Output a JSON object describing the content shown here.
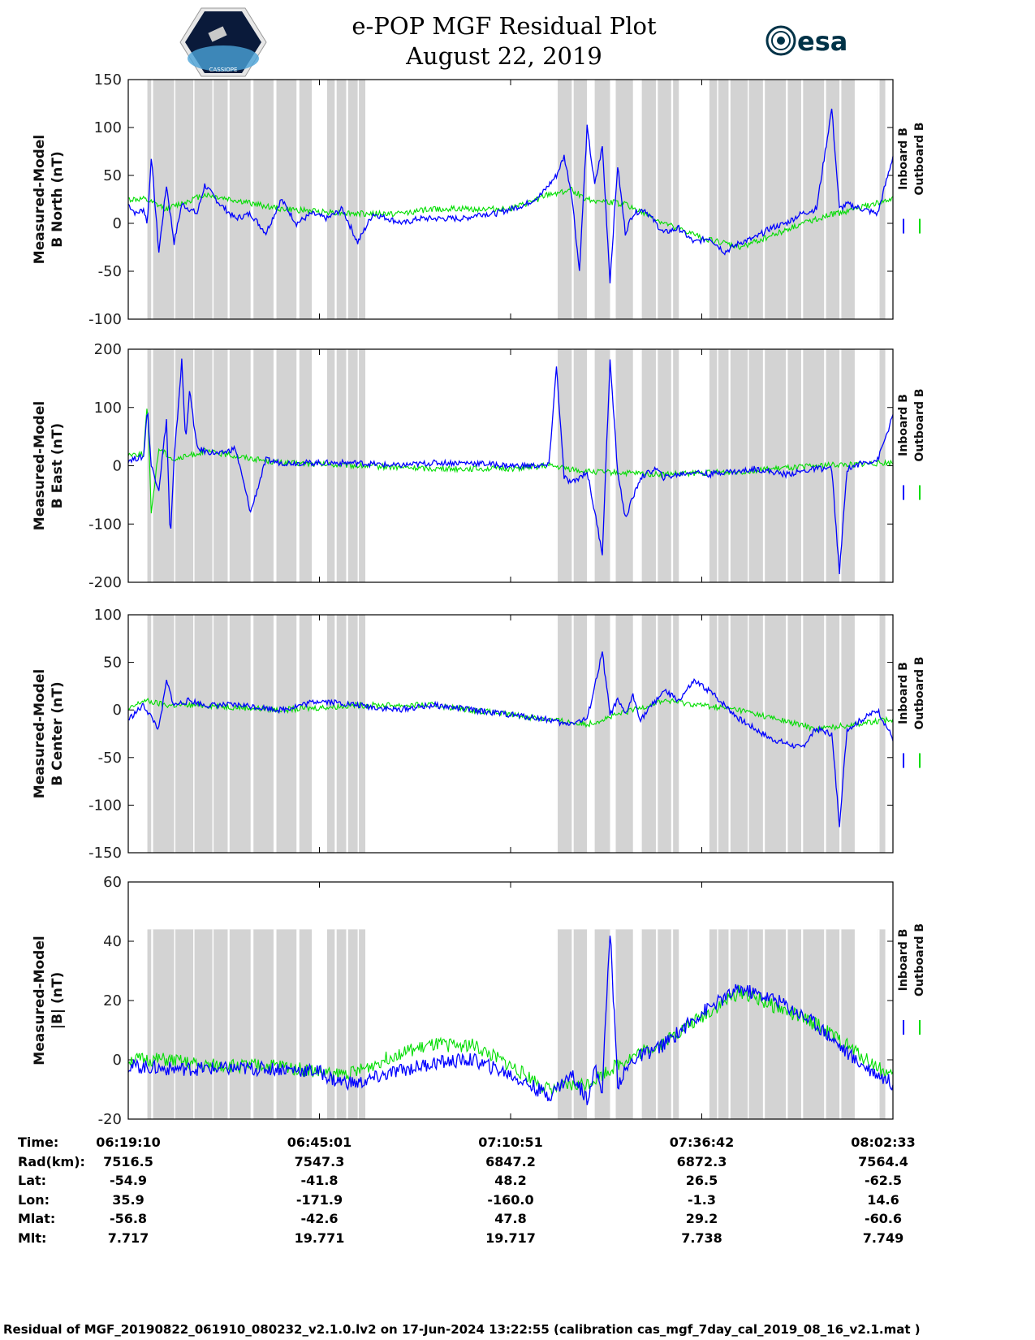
{
  "title_line1": "e-POP MGF Residual Plot",
  "title_line2": "August 22, 2019",
  "logo_left_text": "CASSIOPE",
  "logo_right_text": "esa",
  "legend": {
    "inboard": "Inboard B",
    "outboard": "Outboard B"
  },
  "colors": {
    "inboard": "#0000ff",
    "outboard": "#00dd00",
    "gap": "#d3d3d3",
    "esa": "#003247"
  },
  "chart_data": [
    {
      "type": "line",
      "ylabel_line1": "Measured-Model",
      "ylabel_line2": "B North (nT)",
      "ylim": [
        -100,
        150
      ],
      "yticks": [
        "150",
        "100",
        "50",
        "0",
        "-50",
        "-100"
      ],
      "series": [
        {
          "name": "Inboard B",
          "x": [
            0,
            0.01,
            0.02,
            0.025,
            0.03,
            0.04,
            0.05,
            0.06,
            0.07,
            0.08,
            0.09,
            0.1,
            0.12,
            0.14,
            0.16,
            0.18,
            0.2,
            0.22,
            0.24,
            0.26,
            0.28,
            0.3,
            0.32,
            0.34,
            0.36,
            0.38,
            0.4,
            0.42,
            0.44,
            0.46,
            0.48,
            0.5,
            0.52,
            0.54,
            0.56,
            0.57,
            0.58,
            0.59,
            0.6,
            0.61,
            0.62,
            0.63,
            0.64,
            0.65,
            0.66,
            0.675,
            0.69,
            0.7,
            0.72,
            0.74,
            0.76,
            0.78,
            0.8,
            0.82,
            0.84,
            0.86,
            0.88,
            0.9,
            0.92,
            0.93,
            0.94,
            0.96,
            0.98,
            1.0
          ],
          "values": [
            20,
            10,
            15,
            0,
            70,
            -30,
            40,
            -20,
            20,
            15,
            10,
            40,
            20,
            5,
            10,
            -10,
            25,
            0,
            10,
            5,
            15,
            -20,
            10,
            5,
            0,
            5,
            5,
            5,
            5,
            10,
            10,
            15,
            20,
            30,
            50,
            70,
            30,
            -50,
            100,
            40,
            80,
            -60,
            60,
            -10,
            10,
            15,
            0,
            -10,
            -5,
            -20,
            -15,
            -30,
            -20,
            -15,
            -5,
            0,
            10,
            15,
            120,
            15,
            20,
            15,
            10,
            70
          ]
        },
        {
          "name": "Outboard B",
          "x": [
            0,
            0.02,
            0.05,
            0.1,
            0.2,
            0.3,
            0.35,
            0.4,
            0.45,
            0.5,
            0.52,
            0.55,
            0.58,
            0.6,
            0.65,
            0.7,
            0.75,
            0.8,
            0.85,
            0.9,
            0.95,
            1.0
          ],
          "values": [
            25,
            25,
            15,
            30,
            15,
            10,
            10,
            15,
            15,
            15,
            20,
            30,
            35,
            25,
            20,
            0,
            -15,
            -25,
            -10,
            5,
            15,
            25
          ]
        }
      ]
    },
    {
      "type": "line",
      "ylabel_line1": "Measured-Model",
      "ylabel_line2": "B East (nT)",
      "ylim": [
        -200,
        200
      ],
      "yticks": [
        "200",
        "100",
        "0",
        "-100",
        "-200"
      ],
      "series": [
        {
          "name": "Inboard B",
          "x": [
            0,
            0.02,
            0.025,
            0.03,
            0.04,
            0.05,
            0.055,
            0.06,
            0.07,
            0.075,
            0.08,
            0.09,
            0.1,
            0.12,
            0.14,
            0.16,
            0.18,
            0.2,
            0.25,
            0.3,
            0.35,
            0.4,
            0.45,
            0.5,
            0.55,
            0.56,
            0.57,
            0.58,
            0.6,
            0.61,
            0.62,
            0.63,
            0.64,
            0.65,
            0.67,
            0.69,
            0.7,
            0.72,
            0.74,
            0.76,
            0.78,
            0.8,
            0.82,
            0.84,
            0.86,
            0.88,
            0.9,
            0.92,
            0.93,
            0.94,
            0.96,
            0.98,
            1.0
          ],
          "values": [
            10,
            15,
            100,
            0,
            -40,
            80,
            -130,
            10,
            180,
            40,
            130,
            30,
            25,
            20,
            30,
            -80,
            10,
            5,
            5,
            5,
            0,
            5,
            5,
            0,
            0,
            170,
            -20,
            -30,
            -10,
            -80,
            -150,
            180,
            -10,
            -90,
            -20,
            -5,
            -20,
            -15,
            -10,
            -15,
            -10,
            -10,
            -5,
            -10,
            -15,
            -10,
            -5,
            -5,
            -185,
            -5,
            5,
            10,
            85
          ]
        },
        {
          "name": "Outboard B",
          "x": [
            0,
            0.02,
            0.025,
            0.03,
            0.04,
            0.06,
            0.1,
            0.2,
            0.3,
            0.4,
            0.5,
            0.55,
            0.6,
            0.7,
            0.8,
            0.9,
            1.0
          ],
          "values": [
            20,
            20,
            110,
            -80,
            30,
            10,
            25,
            5,
            0,
            -5,
            -5,
            0,
            -10,
            -15,
            -10,
            0,
            5
          ]
        }
      ]
    },
    {
      "type": "line",
      "ylabel_line1": "Measured-Model",
      "ylabel_line2": "B Center (nT)",
      "ylim": [
        -150,
        100
      ],
      "yticks": [
        "100",
        "50",
        "0",
        "-50",
        "-100",
        "-150"
      ],
      "series": [
        {
          "name": "Inboard B",
          "x": [
            0,
            0.02,
            0.04,
            0.05,
            0.06,
            0.08,
            0.1,
            0.15,
            0.2,
            0.25,
            0.3,
            0.35,
            0.4,
            0.45,
            0.5,
            0.55,
            0.57,
            0.6,
            0.62,
            0.63,
            0.64,
            0.65,
            0.66,
            0.67,
            0.7,
            0.72,
            0.74,
            0.76,
            0.78,
            0.8,
            0.82,
            0.84,
            0.86,
            0.88,
            0.9,
            0.92,
            0.93,
            0.94,
            0.96,
            0.98,
            1.0
          ],
          "values": [
            -10,
            5,
            -20,
            30,
            5,
            10,
            5,
            5,
            0,
            10,
            5,
            0,
            5,
            0,
            -5,
            -10,
            -15,
            -10,
            60,
            -5,
            10,
            -5,
            15,
            -10,
            20,
            10,
            30,
            20,
            5,
            -10,
            -20,
            -30,
            -35,
            -40,
            -20,
            -25,
            -120,
            -20,
            -10,
            0,
            -30
          ]
        },
        {
          "name": "Outboard B",
          "x": [
            0,
            0.02,
            0.05,
            0.1,
            0.2,
            0.3,
            0.4,
            0.5,
            0.6,
            0.7,
            0.8,
            0.9,
            1.0
          ],
          "values": [
            0,
            10,
            5,
            5,
            0,
            5,
            5,
            -5,
            -15,
            10,
            0,
            -20,
            -10
          ]
        }
      ]
    },
    {
      "type": "line",
      "ylabel_line1": "Measured-Model",
      "ylabel_line2": "|B| (nT)",
      "ylim": [
        -20,
        60
      ],
      "yticks": [
        "60",
        "40",
        "20",
        "0",
        "-20"
      ],
      "series": [
        {
          "name": "Inboard B",
          "x": [
            0,
            0.05,
            0.1,
            0.15,
            0.2,
            0.25,
            0.27,
            0.3,
            0.35,
            0.4,
            0.45,
            0.5,
            0.55,
            0.58,
            0.6,
            0.61,
            0.62,
            0.63,
            0.64,
            0.66,
            0.7,
            0.75,
            0.8,
            0.85,
            0.9,
            0.95,
            1.0
          ],
          "values": [
            -2,
            -3,
            -3,
            -3,
            -3,
            -4,
            -7,
            -8,
            -4,
            -1,
            0,
            -5,
            -12,
            -5,
            -13,
            -3,
            -10,
            44,
            -8,
            0,
            5,
            16,
            24,
            20,
            12,
            0,
            -8
          ]
        },
        {
          "name": "Outboard B",
          "x": [
            0,
            0.05,
            0.1,
            0.2,
            0.27,
            0.3,
            0.35,
            0.4,
            0.45,
            0.5,
            0.55,
            0.6,
            0.65,
            0.7,
            0.8,
            0.9,
            1.0
          ],
          "values": [
            0,
            0,
            -2,
            -2,
            -5,
            -4,
            2,
            5,
            5,
            -2,
            -10,
            -8,
            0,
            6,
            23,
            12,
            -6
          ]
        }
      ]
    }
  ],
  "x_axis": {
    "labels": [
      "Time:",
      "Rad(km):",
      "Lat:",
      "Lon:",
      "Mlat:",
      "Mlt:"
    ],
    "columns": [
      [
        "06:19:10",
        "7516.5",
        "-54.9",
        "35.9",
        "-56.8",
        "7.717"
      ],
      [
        "06:45:01",
        "7547.3",
        "-41.8",
        "-171.9",
        "-42.6",
        "19.771"
      ],
      [
        "07:10:51",
        "6847.2",
        "48.2",
        "-160.0",
        "47.8",
        "19.717"
      ],
      [
        "07:36:42",
        "6872.3",
        "26.5",
        "-1.3",
        "29.2",
        "7.738"
      ],
      [
        "08:02:33",
        "7564.4",
        "-62.5",
        "14.6",
        "-60.6",
        "7.749"
      ]
    ]
  },
  "footer": "Residual of MGF_20190822_061910_080232_v2.1.0.lv2 on 17-Jun-2024 13:22:55 (calibration cas_mgf_7day_cal_2019_08_16_v2.1.mat )"
}
